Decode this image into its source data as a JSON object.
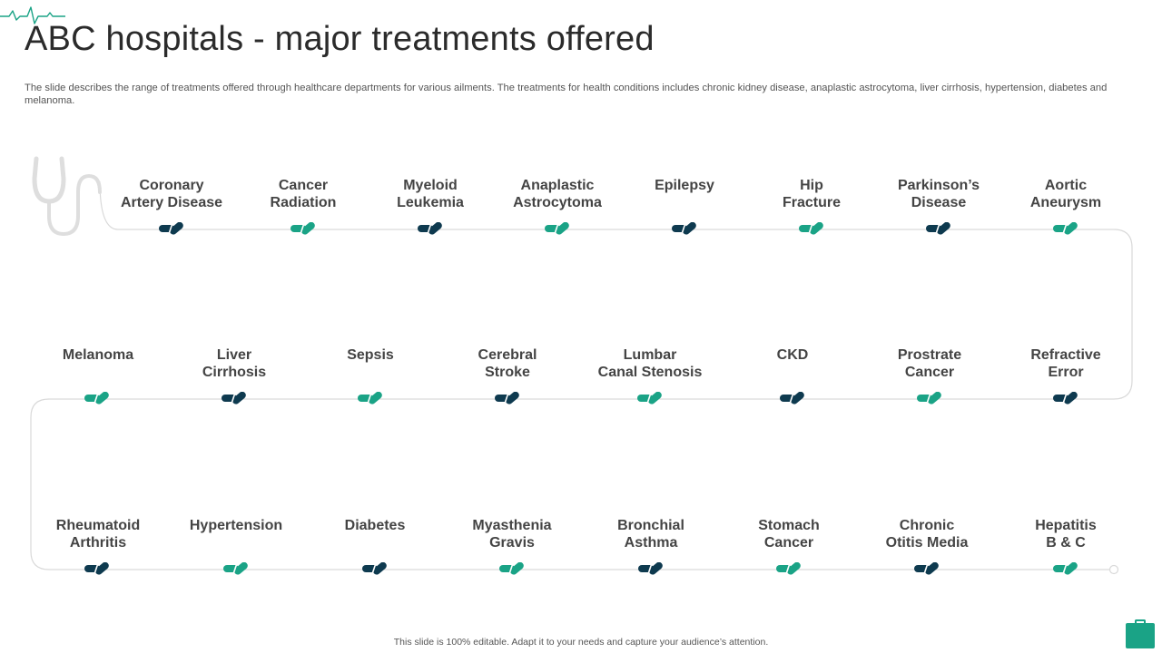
{
  "title": "ABC hospitals - major treatments offered",
  "subtitle": "The slide describes the range of treatments offered through healthcare departments for various ailments. The treatments for health conditions includes chronic kidney disease, anaplastic astrocytoma, liver cirrhosis, hypertension, diabetes and melanoma.",
  "colors": {
    "teal": "#1aa386",
    "navy": "#0e3a4f",
    "line": "#d9d9d9"
  },
  "rows": [
    [
      {
        "lines": [
          "Coronary",
          "Artery Disease"
        ],
        "pill": "navy"
      },
      {
        "lines": [
          "Cancer",
          "Radiation"
        ],
        "pill": "teal"
      },
      {
        "lines": [
          "Myeloid",
          "Leukemia"
        ],
        "pill": "navy"
      },
      {
        "lines": [
          "Anaplastic",
          "Astrocytoma"
        ],
        "pill": "teal"
      },
      {
        "lines": [
          "Epilepsy"
        ],
        "pill": "navy"
      },
      {
        "lines": [
          "Hip",
          "Fracture"
        ],
        "pill": "teal"
      },
      {
        "lines": [
          "Parkinson’s",
          "Disease"
        ],
        "pill": "navy"
      },
      {
        "lines": [
          "Aortic",
          "Aneurysm"
        ],
        "pill": "teal"
      }
    ],
    [
      {
        "lines": [
          "Melanoma"
        ],
        "pill": "teal"
      },
      {
        "lines": [
          "Liver",
          "Cirrhosis"
        ],
        "pill": "navy"
      },
      {
        "lines": [
          "Sepsis"
        ],
        "pill": "teal"
      },
      {
        "lines": [
          "Cerebral",
          "Stroke"
        ],
        "pill": "navy"
      },
      {
        "lines": [
          "Lumbar",
          "Canal Stenosis"
        ],
        "pill": "teal"
      },
      {
        "lines": [
          "CKD"
        ],
        "pill": "navy"
      },
      {
        "lines": [
          "Prostrate",
          "Cancer"
        ],
        "pill": "teal"
      },
      {
        "lines": [
          "Refractive",
          "Error"
        ],
        "pill": "navy"
      }
    ],
    [
      {
        "lines": [
          "Rheumatoid",
          "Arthritis"
        ],
        "pill": "navy"
      },
      {
        "lines": [
          "Hypertension"
        ],
        "pill": "teal"
      },
      {
        "lines": [
          "Diabetes"
        ],
        "pill": "navy"
      },
      {
        "lines": [
          "Myasthenia",
          "Gravis"
        ],
        "pill": "teal"
      },
      {
        "lines": [
          "Bronchial",
          "Asthma"
        ],
        "pill": "navy"
      },
      {
        "lines": [
          "Stomach",
          "Cancer"
        ],
        "pill": "teal"
      },
      {
        "lines": [
          "Chronic",
          "Otitis Media"
        ],
        "pill": "navy"
      },
      {
        "lines": [
          "Hepatitis",
          "B & C"
        ],
        "pill": "teal"
      }
    ]
  ],
  "footer": "This slide is 100% editable. Adapt it to your needs and capture your audience’s attention.",
  "icons": [
    "heartbeat-icon",
    "stethoscope-icon",
    "capsule-icon",
    "briefcase-icon"
  ]
}
